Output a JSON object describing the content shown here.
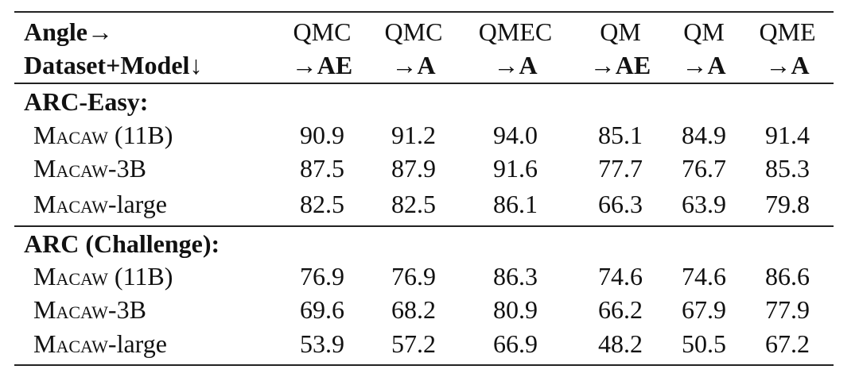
{
  "table": {
    "corner": {
      "top": "Angle→",
      "bottom": "Dataset+Model↓"
    },
    "columns": [
      {
        "top": "QMC",
        "arrow": "→",
        "target": "AE"
      },
      {
        "top": "QMC",
        "arrow": "→",
        "target": "A"
      },
      {
        "top": "QMEC",
        "arrow": "→",
        "target": "A"
      },
      {
        "top": "QM",
        "arrow": "→",
        "target": "AE"
      },
      {
        "top": "QM",
        "arrow": "→",
        "target": "A"
      },
      {
        "top": "QME",
        "arrow": "→",
        "target": "A"
      }
    ],
    "sections": [
      {
        "title": "ARC-Easy:",
        "rows": [
          {
            "model": "Macaw",
            "suffix": " (11B)",
            "values": [
              "90.9",
              "91.2",
              "94.0",
              "85.1",
              "84.9",
              "91.4"
            ]
          },
          {
            "model": "Macaw",
            "suffix": "-3B",
            "values": [
              "87.5",
              "87.9",
              "91.6",
              "77.7",
              "76.7",
              "85.3"
            ]
          },
          {
            "model": "Macaw",
            "suffix": "-large",
            "values": [
              "82.5",
              "82.5",
              "86.1",
              "66.3",
              "63.9",
              "79.8"
            ]
          }
        ]
      },
      {
        "title": "ARC (Challenge):",
        "rows": [
          {
            "model": "Macaw",
            "suffix": " (11B)",
            "values": [
              "76.9",
              "76.9",
              "86.3",
              "74.6",
              "74.6",
              "86.6"
            ]
          },
          {
            "model": "Macaw",
            "suffix": "-3B",
            "values": [
              "69.6",
              "68.2",
              "80.9",
              "66.2",
              "67.9",
              "77.9"
            ]
          },
          {
            "model": "Macaw",
            "suffix": "-large",
            "values": [
              "53.9",
              "57.2",
              "66.9",
              "48.2",
              "50.5",
              "67.2"
            ]
          }
        ]
      }
    ]
  }
}
